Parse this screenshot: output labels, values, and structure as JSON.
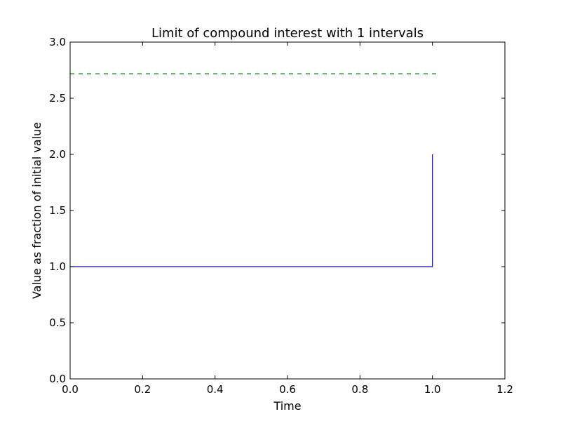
{
  "chart_data": {
    "type": "line",
    "title": "Limit of compound interest with 1 intervals",
    "xlabel": "Time",
    "ylabel": "Value as fraction of initial value",
    "xlim": [
      0.0,
      1.2
    ],
    "ylim": [
      0.0,
      3.0
    ],
    "x_ticks": [
      "0.0",
      "0.2",
      "0.4",
      "0.6",
      "0.8",
      "1.0",
      "1.2"
    ],
    "y_ticks": [
      "0.0",
      "0.5",
      "1.0",
      "1.5",
      "2.0",
      "2.5",
      "3.0"
    ],
    "grid": false,
    "series": [
      {
        "style": "solid",
        "color": "#0000ff",
        "x": [
          0.0,
          1.0,
          1.0
        ],
        "y": [
          1.0,
          1.0,
          2.0
        ]
      },
      {
        "style": "dashed",
        "color": "#008000",
        "x": [
          0.0,
          1.02
        ],
        "y": [
          2.718,
          2.718
        ]
      }
    ]
  }
}
